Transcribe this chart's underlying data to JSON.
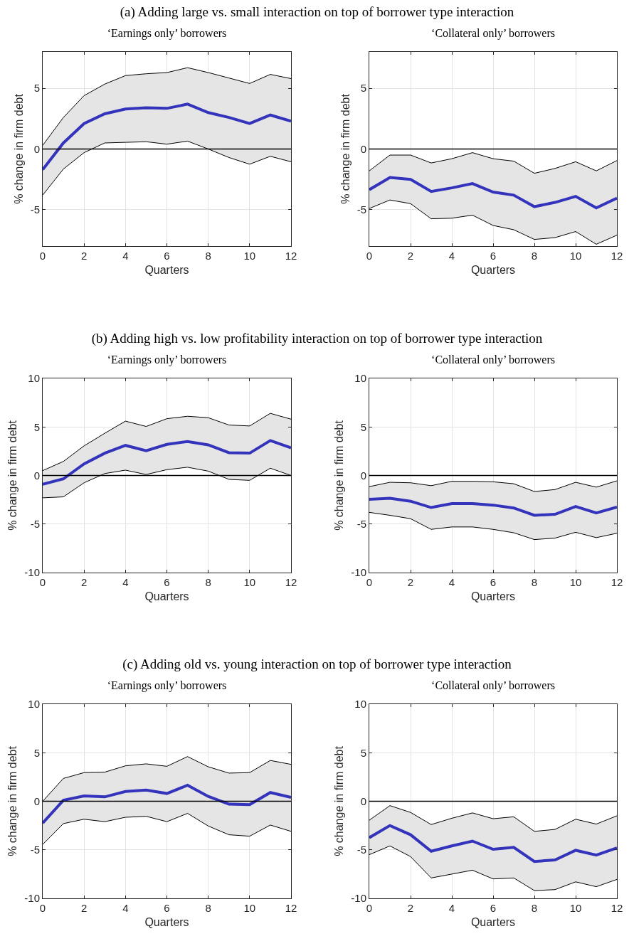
{
  "chart_data": [
    {
      "type": "line",
      "title": "(a) Adding large vs. small interaction on top of borrower type interaction",
      "subtitle": "‘Earnings only’ borrowers",
      "xlabel": "Quarters",
      "ylabel": "% change in firm debt",
      "x": [
        0,
        1,
        2,
        3,
        4,
        5,
        6,
        7,
        8,
        9,
        10,
        11,
        12
      ],
      "xlim": [
        0,
        12
      ],
      "xticks": [
        0,
        2,
        4,
        6,
        8,
        10,
        12
      ],
      "ylim": [
        -8,
        8
      ],
      "yticks": [
        -5,
        0,
        5
      ],
      "grid": true,
      "ref_lines": [
        {
          "axis": "y",
          "value": 0,
          "color": "#000000"
        }
      ],
      "series": [
        {
          "color": "#3333bb",
          "values": [
            -1.7,
            0.5,
            2.1,
            2.9,
            3.3,
            3.4,
            3.35,
            3.7,
            3.0,
            2.6,
            2.1,
            2.8,
            2.3
          ],
          "lower": [
            -3.8,
            -1.65,
            -0.3,
            0.5,
            0.55,
            0.6,
            0.4,
            0.65,
            0,
            -0.7,
            -1.25,
            -0.6,
            -1.05
          ],
          "upper": [
            0.3,
            2.6,
            4.4,
            5.35,
            6.05,
            6.2,
            6.3,
            6.7,
            6.3,
            5.85,
            5.4,
            6.15,
            5.8
          ]
        },
        {
          "color": "#000000",
          "values": [
            -3.8,
            -1.65,
            -0.3,
            0.5,
            0.55,
            0.6,
            0.4,
            0.65,
            0,
            -0.7,
            -1.25,
            -0.6,
            -1.05
          ]
        },
        {
          "color": "#000000",
          "values": [
            0.3,
            2.6,
            4.4,
            5.35,
            6.05,
            6.2,
            6.3,
            6.7,
            6.3,
            5.85,
            5.4,
            6.15,
            5.8
          ]
        }
      ]
    },
    {
      "type": "line",
      "subtitle": "‘Collateral only’ borrowers",
      "xlabel": "Quarters",
      "ylabel": "% change in firm debt",
      "x": [
        0,
        1,
        2,
        3,
        4,
        5,
        6,
        7,
        8,
        9,
        10,
        11,
        12
      ],
      "xlim": [
        0,
        12
      ],
      "xticks": [
        0,
        2,
        4,
        6,
        8,
        10,
        12
      ],
      "ylim": [
        -8,
        8
      ],
      "yticks": [
        -5,
        0,
        5
      ],
      "grid": true,
      "ref_lines": [
        {
          "axis": "y",
          "value": 0,
          "color": "#000000"
        }
      ],
      "series": [
        {
          "color": "#3333bb",
          "values": [
            -3.35,
            -2.35,
            -2.5,
            -3.5,
            -3.2,
            -2.85,
            -3.55,
            -3.8,
            -4.75,
            -4.4,
            -3.9,
            -4.85,
            -4.05
          ],
          "lower": [
            -4.9,
            -4.2,
            -4.5,
            -5.75,
            -5.7,
            -5.45,
            -6.3,
            -6.65,
            -7.45,
            -7.3,
            -6.8,
            -7.85,
            -7.1
          ],
          "upper": [
            -1.8,
            -0.5,
            -0.5,
            -1.15,
            -0.8,
            -0.3,
            -0.8,
            -1.0,
            -2.0,
            -1.6,
            -1.05,
            -1.8,
            -0.95
          ]
        },
        {
          "color": "#000000",
          "values": [
            -4.9,
            -4.2,
            -4.5,
            -5.75,
            -5.7,
            -5.45,
            -6.3,
            -6.65,
            -7.45,
            -7.3,
            -6.8,
            -7.85,
            -7.1
          ]
        },
        {
          "color": "#000000",
          "values": [
            -1.8,
            -0.5,
            -0.5,
            -1.15,
            -0.8,
            -0.3,
            -0.8,
            -1.0,
            -2.0,
            -1.6,
            -1.05,
            -1.8,
            -0.95
          ]
        }
      ]
    },
    {
      "type": "line",
      "title": "(b) Adding high vs. low profitability interaction on top of borrower type interaction",
      "subtitle": "‘Earnings only’ borrowers",
      "xlabel": "Quarters",
      "ylabel": "% change in firm debt",
      "x": [
        0,
        1,
        2,
        3,
        4,
        5,
        6,
        7,
        8,
        9,
        10,
        11,
        12
      ],
      "xlim": [
        0,
        12
      ],
      "xticks": [
        0,
        2,
        4,
        6,
        8,
        10,
        12
      ],
      "ylim": [
        -10,
        10
      ],
      "yticks": [
        -10,
        -5,
        0,
        5,
        10
      ],
      "grid": true,
      "ref_lines": [
        {
          "axis": "y",
          "value": 0,
          "color": "#000000"
        }
      ],
      "series": [
        {
          "color": "#3333bb",
          "values": [
            -0.9,
            -0.35,
            1.2,
            2.3,
            3.1,
            2.55,
            3.2,
            3.5,
            3.15,
            2.35,
            2.3,
            3.6,
            2.85
          ],
          "lower": [
            -2.3,
            -2.2,
            -0.75,
            0.2,
            0.55,
            0.1,
            0.6,
            0.85,
            0.45,
            -0.4,
            -0.5,
            0.75,
            0
          ],
          "upper": [
            0.5,
            1.45,
            3.05,
            4.35,
            5.6,
            5.05,
            5.85,
            6.1,
            5.95,
            5.2,
            5.1,
            6.4,
            5.8
          ]
        },
        {
          "color": "#000000",
          "values": [
            -2.3,
            -2.2,
            -0.75,
            0.2,
            0.55,
            0.1,
            0.6,
            0.85,
            0.45,
            -0.4,
            -0.5,
            0.75,
            0
          ]
        },
        {
          "color": "#000000",
          "values": [
            0.5,
            1.45,
            3.05,
            4.35,
            5.6,
            5.05,
            5.85,
            6.1,
            5.95,
            5.2,
            5.1,
            6.4,
            5.8
          ]
        }
      ]
    },
    {
      "type": "line",
      "subtitle": "‘Collateral only’ borrowers",
      "xlabel": "Quarters",
      "ylabel": "% change in firm debt",
      "x": [
        0,
        1,
        2,
        3,
        4,
        5,
        6,
        7,
        8,
        9,
        10,
        11,
        12
      ],
      "xlim": [
        0,
        12
      ],
      "xticks": [
        0,
        2,
        4,
        6,
        8,
        10,
        12
      ],
      "ylim": [
        -10,
        10
      ],
      "yticks": [
        -10,
        -5,
        0,
        5,
        10
      ],
      "grid": true,
      "ref_lines": [
        {
          "axis": "y",
          "value": 0,
          "color": "#000000"
        }
      ],
      "series": [
        {
          "color": "#3333bb",
          "values": [
            -2.45,
            -2.35,
            -2.65,
            -3.3,
            -2.9,
            -2.9,
            -3.05,
            -3.35,
            -4.1,
            -4.0,
            -3.2,
            -3.85,
            -3.25
          ],
          "lower": [
            -3.8,
            -4.1,
            -4.45,
            -5.55,
            -5.3,
            -5.3,
            -5.55,
            -5.9,
            -6.6,
            -6.45,
            -5.85,
            -6.4,
            -5.95
          ],
          "upper": [
            -1.15,
            -0.7,
            -0.75,
            -1.05,
            -0.6,
            -0.6,
            -0.65,
            -0.85,
            -1.65,
            -1.45,
            -0.7,
            -1.2,
            -0.55
          ]
        },
        {
          "color": "#000000",
          "values": [
            -3.8,
            -4.1,
            -4.45,
            -5.55,
            -5.3,
            -5.3,
            -5.55,
            -5.9,
            -6.6,
            -6.45,
            -5.85,
            -6.4,
            -5.95
          ]
        },
        {
          "color": "#000000",
          "values": [
            -1.15,
            -0.7,
            -0.75,
            -1.05,
            -0.6,
            -0.6,
            -0.65,
            -0.85,
            -1.65,
            -1.45,
            -0.7,
            -1.2,
            -0.55
          ]
        }
      ]
    },
    {
      "type": "line",
      "title": "(c) Adding old vs. young interaction on top of borrower type interaction",
      "subtitle": "‘Earnings only’ borrowers",
      "xlabel": "Quarters",
      "ylabel": "% change in firm debt",
      "x": [
        0,
        1,
        2,
        3,
        4,
        5,
        6,
        7,
        8,
        9,
        10,
        11,
        12
      ],
      "xlim": [
        0,
        12
      ],
      "xticks": [
        0,
        2,
        4,
        6,
        8,
        10,
        12
      ],
      "ylim": [
        -10,
        10
      ],
      "yticks": [
        -10,
        -5,
        0,
        5,
        10
      ],
      "grid": true,
      "ref_lines": [
        {
          "axis": "y",
          "value": 0,
          "color": "#000000"
        }
      ],
      "series": [
        {
          "color": "#3333bb",
          "values": [
            -2.25,
            0.1,
            0.55,
            0.45,
            1.0,
            1.15,
            0.8,
            1.65,
            0.5,
            -0.3,
            -0.35,
            0.9,
            0.4
          ],
          "lower": [
            -4.45,
            -2.3,
            -1.85,
            -2.1,
            -1.65,
            -1.55,
            -2.1,
            -1.25,
            -2.55,
            -3.45,
            -3.6,
            -2.45,
            -3.1
          ],
          "upper": [
            0,
            2.35,
            2.95,
            3.0,
            3.65,
            3.85,
            3.6,
            4.6,
            3.55,
            2.9,
            2.95,
            4.2,
            3.8
          ]
        },
        {
          "color": "#000000",
          "values": [
            -4.45,
            -2.3,
            -1.85,
            -2.1,
            -1.65,
            -1.55,
            -2.1,
            -1.25,
            -2.55,
            -3.45,
            -3.6,
            -2.45,
            -3.1
          ]
        },
        {
          "color": "#000000",
          "values": [
            0,
            2.35,
            2.95,
            3.0,
            3.65,
            3.85,
            3.6,
            4.6,
            3.55,
            2.9,
            2.95,
            4.2,
            3.8
          ]
        }
      ]
    },
    {
      "type": "line",
      "subtitle": "‘Collateral only’ borrowers",
      "xlabel": "Quarters",
      "ylabel": "% change in firm debt",
      "x": [
        0,
        1,
        2,
        3,
        4,
        5,
        6,
        7,
        8,
        9,
        10,
        11,
        12
      ],
      "xlim": [
        0,
        12
      ],
      "xticks": [
        0,
        2,
        4,
        6,
        8,
        10,
        12
      ],
      "ylim": [
        -10,
        10
      ],
      "yticks": [
        -10,
        -5,
        0,
        5,
        10
      ],
      "grid": true,
      "ref_lines": [
        {
          "axis": "y",
          "value": 0,
          "color": "#000000"
        }
      ],
      "series": [
        {
          "color": "#3333bb",
          "values": [
            -3.75,
            -2.5,
            -3.45,
            -5.15,
            -4.6,
            -4.1,
            -4.95,
            -4.75,
            -6.2,
            -6.05,
            -5.05,
            -5.55,
            -4.8
          ],
          "lower": [
            -5.5,
            -4.6,
            -5.7,
            -7.9,
            -7.5,
            -7.1,
            -8.0,
            -7.9,
            -9.2,
            -9.1,
            -8.3,
            -8.8,
            -8.05
          ],
          "upper": [
            -1.95,
            -0.45,
            -1.15,
            -2.4,
            -1.75,
            -1.2,
            -1.8,
            -1.6,
            -3.1,
            -2.9,
            -1.85,
            -2.35,
            -1.5
          ]
        },
        {
          "color": "#000000",
          "values": [
            -5.5,
            -4.6,
            -5.7,
            -7.9,
            -7.5,
            -7.1,
            -8.0,
            -7.9,
            -9.2,
            -9.1,
            -8.3,
            -8.8,
            -8.05
          ]
        },
        {
          "color": "#000000",
          "values": [
            -1.95,
            -0.45,
            -1.15,
            -2.4,
            -1.75,
            -1.2,
            -1.8,
            -1.6,
            -3.1,
            -2.9,
            -1.85,
            -2.35,
            -1.5
          ]
        }
      ]
    }
  ]
}
